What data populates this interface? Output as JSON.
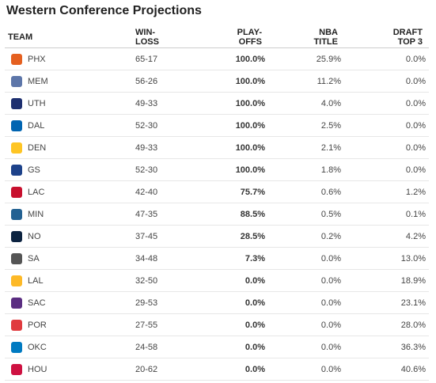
{
  "title": "Western Conference Projections",
  "headers": {
    "team": "TEAM",
    "winloss_1": "WIN-",
    "winloss_2": "LOSS",
    "playoffs_1": "PLAY-",
    "playoffs_2": "OFFS",
    "nba_1": "NBA",
    "nba_2": "TITLE",
    "draft_1": "DRAFT",
    "draft_2": "TOP 3"
  },
  "rows": [
    {
      "team": "PHX",
      "record": "65-17",
      "playoffs": "100.0%",
      "title": "25.9%",
      "draft": "0.0%",
      "logo_icon": "suns-logo-icon",
      "logo_color": "#e56020"
    },
    {
      "team": "MEM",
      "record": "56-26",
      "playoffs": "100.0%",
      "title": "11.2%",
      "draft": "0.0%",
      "logo_icon": "grizzlies-logo-icon",
      "logo_color": "#5d76a9"
    },
    {
      "team": "UTH",
      "record": "49-33",
      "playoffs": "100.0%",
      "title": "4.0%",
      "draft": "0.0%",
      "logo_icon": "jazz-logo-icon",
      "logo_color": "#1d2f6f"
    },
    {
      "team": "DAL",
      "record": "52-30",
      "playoffs": "100.0%",
      "title": "2.5%",
      "draft": "0.0%",
      "logo_icon": "mavericks-logo-icon",
      "logo_color": "#0064b1"
    },
    {
      "team": "DEN",
      "record": "49-33",
      "playoffs": "100.0%",
      "title": "2.1%",
      "draft": "0.0%",
      "logo_icon": "nuggets-logo-icon",
      "logo_color": "#fec524"
    },
    {
      "team": "GS",
      "record": "52-30",
      "playoffs": "100.0%",
      "title": "1.8%",
      "draft": "0.0%",
      "logo_icon": "warriors-logo-icon",
      "logo_color": "#1d428a"
    },
    {
      "team": "LAC",
      "record": "42-40",
      "playoffs": "75.7%",
      "title": "0.6%",
      "draft": "1.2%",
      "logo_icon": "clippers-logo-icon",
      "logo_color": "#c8102e"
    },
    {
      "team": "MIN",
      "record": "47-35",
      "playoffs": "88.5%",
      "title": "0.5%",
      "draft": "0.1%",
      "logo_icon": "timberwolves-logo-icon",
      "logo_color": "#236192"
    },
    {
      "team": "NO",
      "record": "37-45",
      "playoffs": "28.5%",
      "title": "0.2%",
      "draft": "4.2%",
      "logo_icon": "pelicans-logo-icon",
      "logo_color": "#0c2340"
    },
    {
      "team": "SA",
      "record": "34-48",
      "playoffs": "7.3%",
      "title": "0.0%",
      "draft": "13.0%",
      "logo_icon": "spurs-logo-icon",
      "logo_color": "#555555"
    },
    {
      "team": "LAL",
      "record": "32-50",
      "playoffs": "0.0%",
      "title": "0.0%",
      "draft": "18.9%",
      "logo_icon": "lakers-logo-icon",
      "logo_color": "#fdb927"
    },
    {
      "team": "SAC",
      "record": "29-53",
      "playoffs": "0.0%",
      "title": "0.0%",
      "draft": "23.1%",
      "logo_icon": "kings-logo-icon",
      "logo_color": "#5a2d81"
    },
    {
      "team": "POR",
      "record": "27-55",
      "playoffs": "0.0%",
      "title": "0.0%",
      "draft": "28.0%",
      "logo_icon": "blazers-logo-icon",
      "logo_color": "#e03a3e"
    },
    {
      "team": "OKC",
      "record": "24-58",
      "playoffs": "0.0%",
      "title": "0.0%",
      "draft": "36.3%",
      "logo_icon": "thunder-logo-icon",
      "logo_color": "#007ac1"
    },
    {
      "team": "HOU",
      "record": "20-62",
      "playoffs": "0.0%",
      "title": "0.0%",
      "draft": "40.6%",
      "logo_icon": "rockets-logo-icon",
      "logo_color": "#ce1141"
    }
  ]
}
